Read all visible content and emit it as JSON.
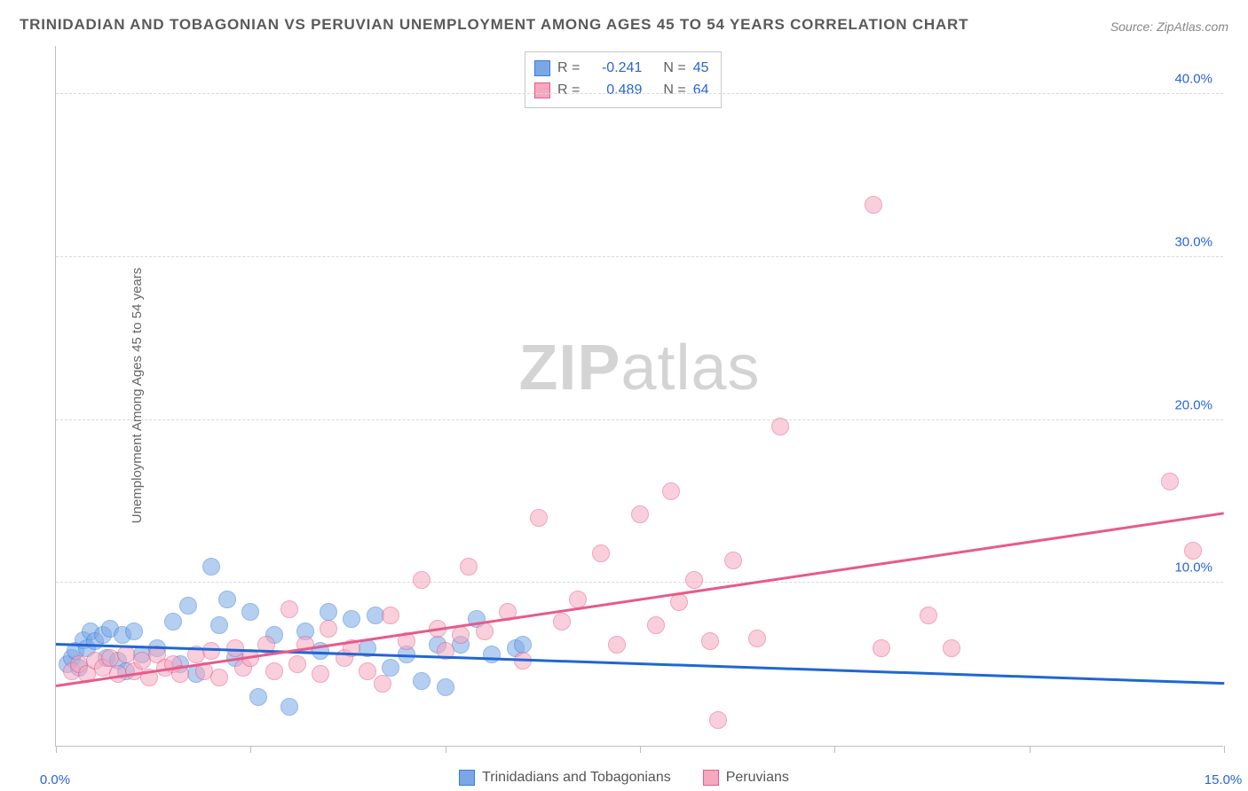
{
  "title": "TRINIDADIAN AND TOBAGONIAN VS PERUVIAN UNEMPLOYMENT AMONG AGES 45 TO 54 YEARS CORRELATION CHART",
  "source_label": "Source:",
  "source_value": "ZipAtlas.com",
  "ylabel": "Unemployment Among Ages 45 to 54 years",
  "watermark_bold": "ZIP",
  "watermark_light": "atlas",
  "chart": {
    "type": "scatter",
    "background_color": "#ffffff",
    "grid_color": "#d9d9d9",
    "axis_color": "#bfbfbf",
    "xlim": [
      0,
      15
    ],
    "ylim": [
      0,
      43
    ],
    "x_ticks": [
      0,
      2.5,
      5,
      7.5,
      10,
      12.5,
      15
    ],
    "x_tick_labels": {
      "0": "0.0%",
      "15": "15.0%"
    },
    "y_ticks": [
      10,
      20,
      30,
      40
    ],
    "y_tick_labels": {
      "10": "10.0%",
      "20": "20.0%",
      "30": "30.0%",
      "40": "40.0%"
    },
    "x_tick_color": "#2965d4",
    "y_tick_color": "#2965d4",
    "marker_radius": 10,
    "marker_opacity": 0.55,
    "series": [
      {
        "name": "Trinidadians and Tobagonians",
        "fill": "#7aa8e6",
        "stroke": "#3b7dd8",
        "trend_color": "#1f66d6",
        "R": "-0.241",
        "N": "45",
        "trend": {
          "x1": 0,
          "y1": 6.2,
          "x2": 15,
          "y2": 3.8
        },
        "points": [
          [
            0.15,
            5.0
          ],
          [
            0.2,
            5.4
          ],
          [
            0.25,
            5.8
          ],
          [
            0.3,
            4.8
          ],
          [
            0.35,
            6.5
          ],
          [
            0.4,
            6.0
          ],
          [
            0.45,
            7.0
          ],
          [
            0.5,
            6.4
          ],
          [
            0.6,
            6.8
          ],
          [
            0.65,
            5.4
          ],
          [
            0.7,
            7.2
          ],
          [
            0.8,
            5.2
          ],
          [
            0.85,
            6.8
          ],
          [
            0.9,
            4.6
          ],
          [
            1.0,
            7.0
          ],
          [
            1.1,
            5.6
          ],
          [
            1.3,
            6.0
          ],
          [
            1.5,
            7.6
          ],
          [
            1.6,
            5.0
          ],
          [
            1.7,
            8.6
          ],
          [
            1.8,
            4.4
          ],
          [
            2.0,
            11.0
          ],
          [
            2.1,
            7.4
          ],
          [
            2.2,
            9.0
          ],
          [
            2.3,
            5.4
          ],
          [
            2.5,
            8.2
          ],
          [
            2.6,
            3.0
          ],
          [
            2.8,
            6.8
          ],
          [
            3.0,
            2.4
          ],
          [
            3.2,
            7.0
          ],
          [
            3.4,
            5.8
          ],
          [
            3.5,
            8.2
          ],
          [
            3.8,
            7.8
          ],
          [
            4.0,
            6.0
          ],
          [
            4.1,
            8.0
          ],
          [
            4.3,
            4.8
          ],
          [
            4.5,
            5.6
          ],
          [
            4.7,
            4.0
          ],
          [
            4.9,
            6.2
          ],
          [
            5.0,
            3.6
          ],
          [
            5.2,
            6.2
          ],
          [
            5.4,
            7.8
          ],
          [
            5.6,
            5.6
          ],
          [
            5.9,
            6.0
          ],
          [
            6.0,
            6.2
          ]
        ]
      },
      {
        "name": "Peruvians",
        "fill": "#f5a8c0",
        "stroke": "#e75a8a",
        "trend_color": "#e75a8a",
        "R": "0.489",
        "N": "64",
        "trend": {
          "x1": 0,
          "y1": 3.6,
          "x2": 15,
          "y2": 14.2
        },
        "points": [
          [
            0.2,
            4.6
          ],
          [
            0.3,
            5.0
          ],
          [
            0.4,
            4.4
          ],
          [
            0.5,
            5.2
          ],
          [
            0.6,
            4.8
          ],
          [
            0.7,
            5.4
          ],
          [
            0.8,
            4.4
          ],
          [
            0.9,
            5.6
          ],
          [
            1.0,
            4.6
          ],
          [
            1.1,
            5.2
          ],
          [
            1.2,
            4.2
          ],
          [
            1.3,
            5.6
          ],
          [
            1.4,
            4.8
          ],
          [
            1.5,
            5.0
          ],
          [
            1.6,
            4.4
          ],
          [
            1.8,
            5.6
          ],
          [
            1.9,
            4.6
          ],
          [
            2.0,
            5.8
          ],
          [
            2.1,
            4.2
          ],
          [
            2.3,
            6.0
          ],
          [
            2.4,
            4.8
          ],
          [
            2.5,
            5.4
          ],
          [
            2.7,
            6.2
          ],
          [
            2.8,
            4.6
          ],
          [
            3.0,
            8.4
          ],
          [
            3.1,
            5.0
          ],
          [
            3.2,
            6.2
          ],
          [
            3.4,
            4.4
          ],
          [
            3.5,
            7.2
          ],
          [
            3.7,
            5.4
          ],
          [
            3.8,
            6.0
          ],
          [
            4.0,
            4.6
          ],
          [
            4.2,
            3.8
          ],
          [
            4.3,
            8.0
          ],
          [
            4.5,
            6.4
          ],
          [
            4.7,
            10.2
          ],
          [
            4.9,
            7.2
          ],
          [
            5.0,
            5.8
          ],
          [
            5.2,
            6.8
          ],
          [
            5.3,
            11.0
          ],
          [
            5.5,
            7.0
          ],
          [
            5.8,
            8.2
          ],
          [
            6.0,
            5.2
          ],
          [
            6.2,
            14.0
          ],
          [
            6.5,
            7.6
          ],
          [
            6.7,
            9.0
          ],
          [
            7.0,
            11.8
          ],
          [
            7.2,
            6.2
          ],
          [
            7.5,
            14.2
          ],
          [
            7.7,
            7.4
          ],
          [
            7.9,
            15.6
          ],
          [
            8.0,
            8.8
          ],
          [
            8.2,
            10.2
          ],
          [
            8.4,
            6.4
          ],
          [
            8.5,
            1.6
          ],
          [
            8.7,
            11.4
          ],
          [
            9.0,
            6.6
          ],
          [
            9.3,
            19.6
          ],
          [
            10.5,
            33.2
          ],
          [
            10.6,
            6.0
          ],
          [
            11.2,
            8.0
          ],
          [
            11.5,
            6.0
          ],
          [
            14.3,
            16.2
          ],
          [
            14.6,
            12.0
          ]
        ]
      }
    ]
  },
  "stats_label_R": "R =",
  "stats_label_N": "N ="
}
